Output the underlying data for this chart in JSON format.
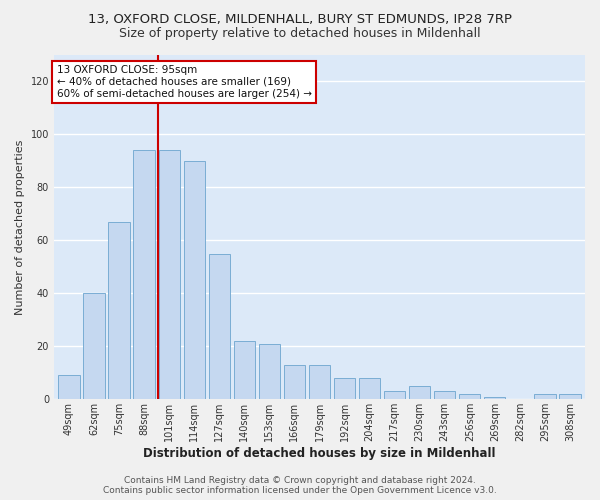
{
  "title": "13, OXFORD CLOSE, MILDENHALL, BURY ST EDMUNDS, IP28 7RP",
  "subtitle": "Size of property relative to detached houses in Mildenhall",
  "xlabel": "Distribution of detached houses by size in Mildenhall",
  "ylabel": "Number of detached properties",
  "categories": [
    "49sqm",
    "62sqm",
    "75sqm",
    "88sqm",
    "101sqm",
    "114sqm",
    "127sqm",
    "140sqm",
    "153sqm",
    "166sqm",
    "179sqm",
    "192sqm",
    "204sqm",
    "217sqm",
    "230sqm",
    "243sqm",
    "256sqm",
    "269sqm",
    "282sqm",
    "295sqm",
    "308sqm"
  ],
  "values": [
    9,
    40,
    67,
    94,
    94,
    90,
    55,
    22,
    21,
    13,
    13,
    8,
    8,
    3,
    5,
    3,
    2,
    1,
    0,
    2,
    2
  ],
  "bar_color": "#c5d8f0",
  "bar_edge_color": "#7aadd4",
  "vline_color": "#cc0000",
  "annotation_line1": "13 OXFORD CLOSE: 95sqm",
  "annotation_line2": "← 40% of detached houses are smaller (169)",
  "annotation_line3": "60% of semi-detached houses are larger (254) →",
  "annotation_box_color": "#ffffff",
  "annotation_box_edge": "#cc0000",
  "ylim": [
    0,
    130
  ],
  "yticks": [
    0,
    20,
    40,
    60,
    80,
    100,
    120
  ],
  "footer1": "Contains HM Land Registry data © Crown copyright and database right 2024.",
  "footer2": "Contains public sector information licensed under the Open Government Licence v3.0.",
  "bg_color": "#dce9f8",
  "grid_color": "#ffffff",
  "title_fontsize": 9.5,
  "subtitle_fontsize": 9,
  "xlabel_fontsize": 8.5,
  "ylabel_fontsize": 8,
  "tick_fontsize": 7,
  "footer_fontsize": 6.5,
  "annotation_fontsize": 7.5
}
